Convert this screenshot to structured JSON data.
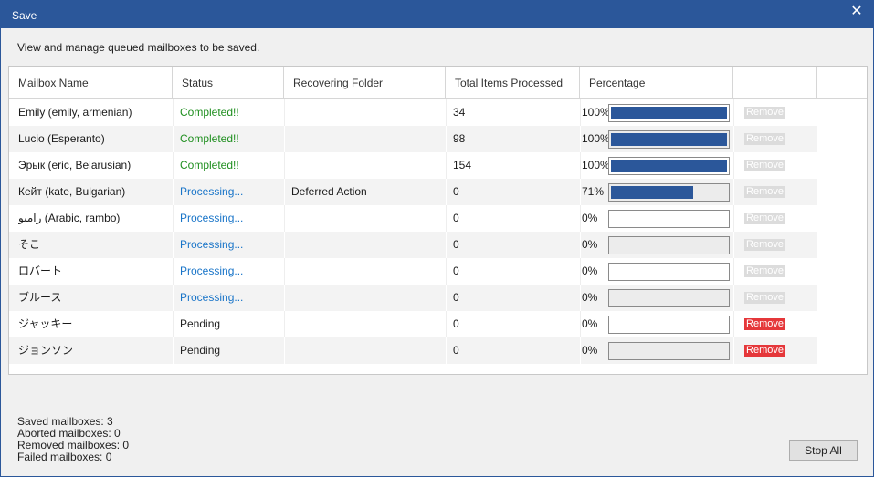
{
  "window": {
    "title": "Save",
    "close_glyph": "✕"
  },
  "description": "View and manage queued mailboxes to be saved.",
  "columns": [
    "Mailbox Name",
    "Status",
    "Recovering Folder",
    "Total Items Processed",
    "Percentage",
    ""
  ],
  "rows": [
    {
      "name": "Emily (emily, armenian)",
      "status": "Completed!!",
      "folder": "",
      "items": "34",
      "pct_label": "100%",
      "pct": 1.0,
      "remove": "Remove"
    },
    {
      "name": "Lucio (Esperanto)",
      "status": "Completed!!",
      "folder": "",
      "items": "98",
      "pct_label": "100%",
      "pct": 1.0,
      "remove": "Remove"
    },
    {
      "name": "Эрык (eric, Belarusian)",
      "status": "Completed!!",
      "folder": "",
      "items": "154",
      "pct_label": "100%",
      "pct": 1.0,
      "remove": "Remove"
    },
    {
      "name": "Кейт (kate, Bulgarian)",
      "status": "Processing...",
      "folder": "Deferred Action",
      "items": "0",
      "pct_label": "71%",
      "pct": 0.71,
      "remove": "Remove"
    },
    {
      "name": "رامبو (Arabic, rambo)",
      "status": "Processing...",
      "folder": "",
      "items": "0",
      "pct_label": "0%",
      "pct": 0,
      "remove": "Remove"
    },
    {
      "name": "そこ",
      "status": "Processing...",
      "folder": "",
      "items": "0",
      "pct_label": "0%",
      "pct": 0,
      "remove": "Remove"
    },
    {
      "name": "ロバート",
      "status": "Processing...",
      "folder": "",
      "items": "0",
      "pct_label": "0%",
      "pct": 0,
      "remove": "Remove"
    },
    {
      "name": "ブルース",
      "status": "Processing...",
      "folder": "",
      "items": "0",
      "pct_label": "0%",
      "pct": 0,
      "remove": "Remove"
    },
    {
      "name": "ジャッキー",
      "status": "Pending",
      "folder": "",
      "items": "0",
      "pct_label": "0%",
      "pct": 0,
      "remove": "Remove"
    },
    {
      "name": "ジョンソン",
      "status": "Pending",
      "folder": "",
      "items": "0",
      "pct_label": "0%",
      "pct": 0,
      "remove": "Remove"
    }
  ],
  "stats": {
    "saved": "Saved mailboxes: 3",
    "aborted": "Aborted mailboxes: 0",
    "removed": "Removed mailboxes: 0",
    "failed": "Failed mailboxes: 0"
  },
  "stop_all_label": "Stop All",
  "colors": {
    "titlebar": "#2b579a",
    "progress_fill": "#2b579a",
    "completed": "#1f8f1f",
    "processing": "#1874c8",
    "remove_active": "#e5373a",
    "remove_disabled": "#dcdcdc"
  }
}
